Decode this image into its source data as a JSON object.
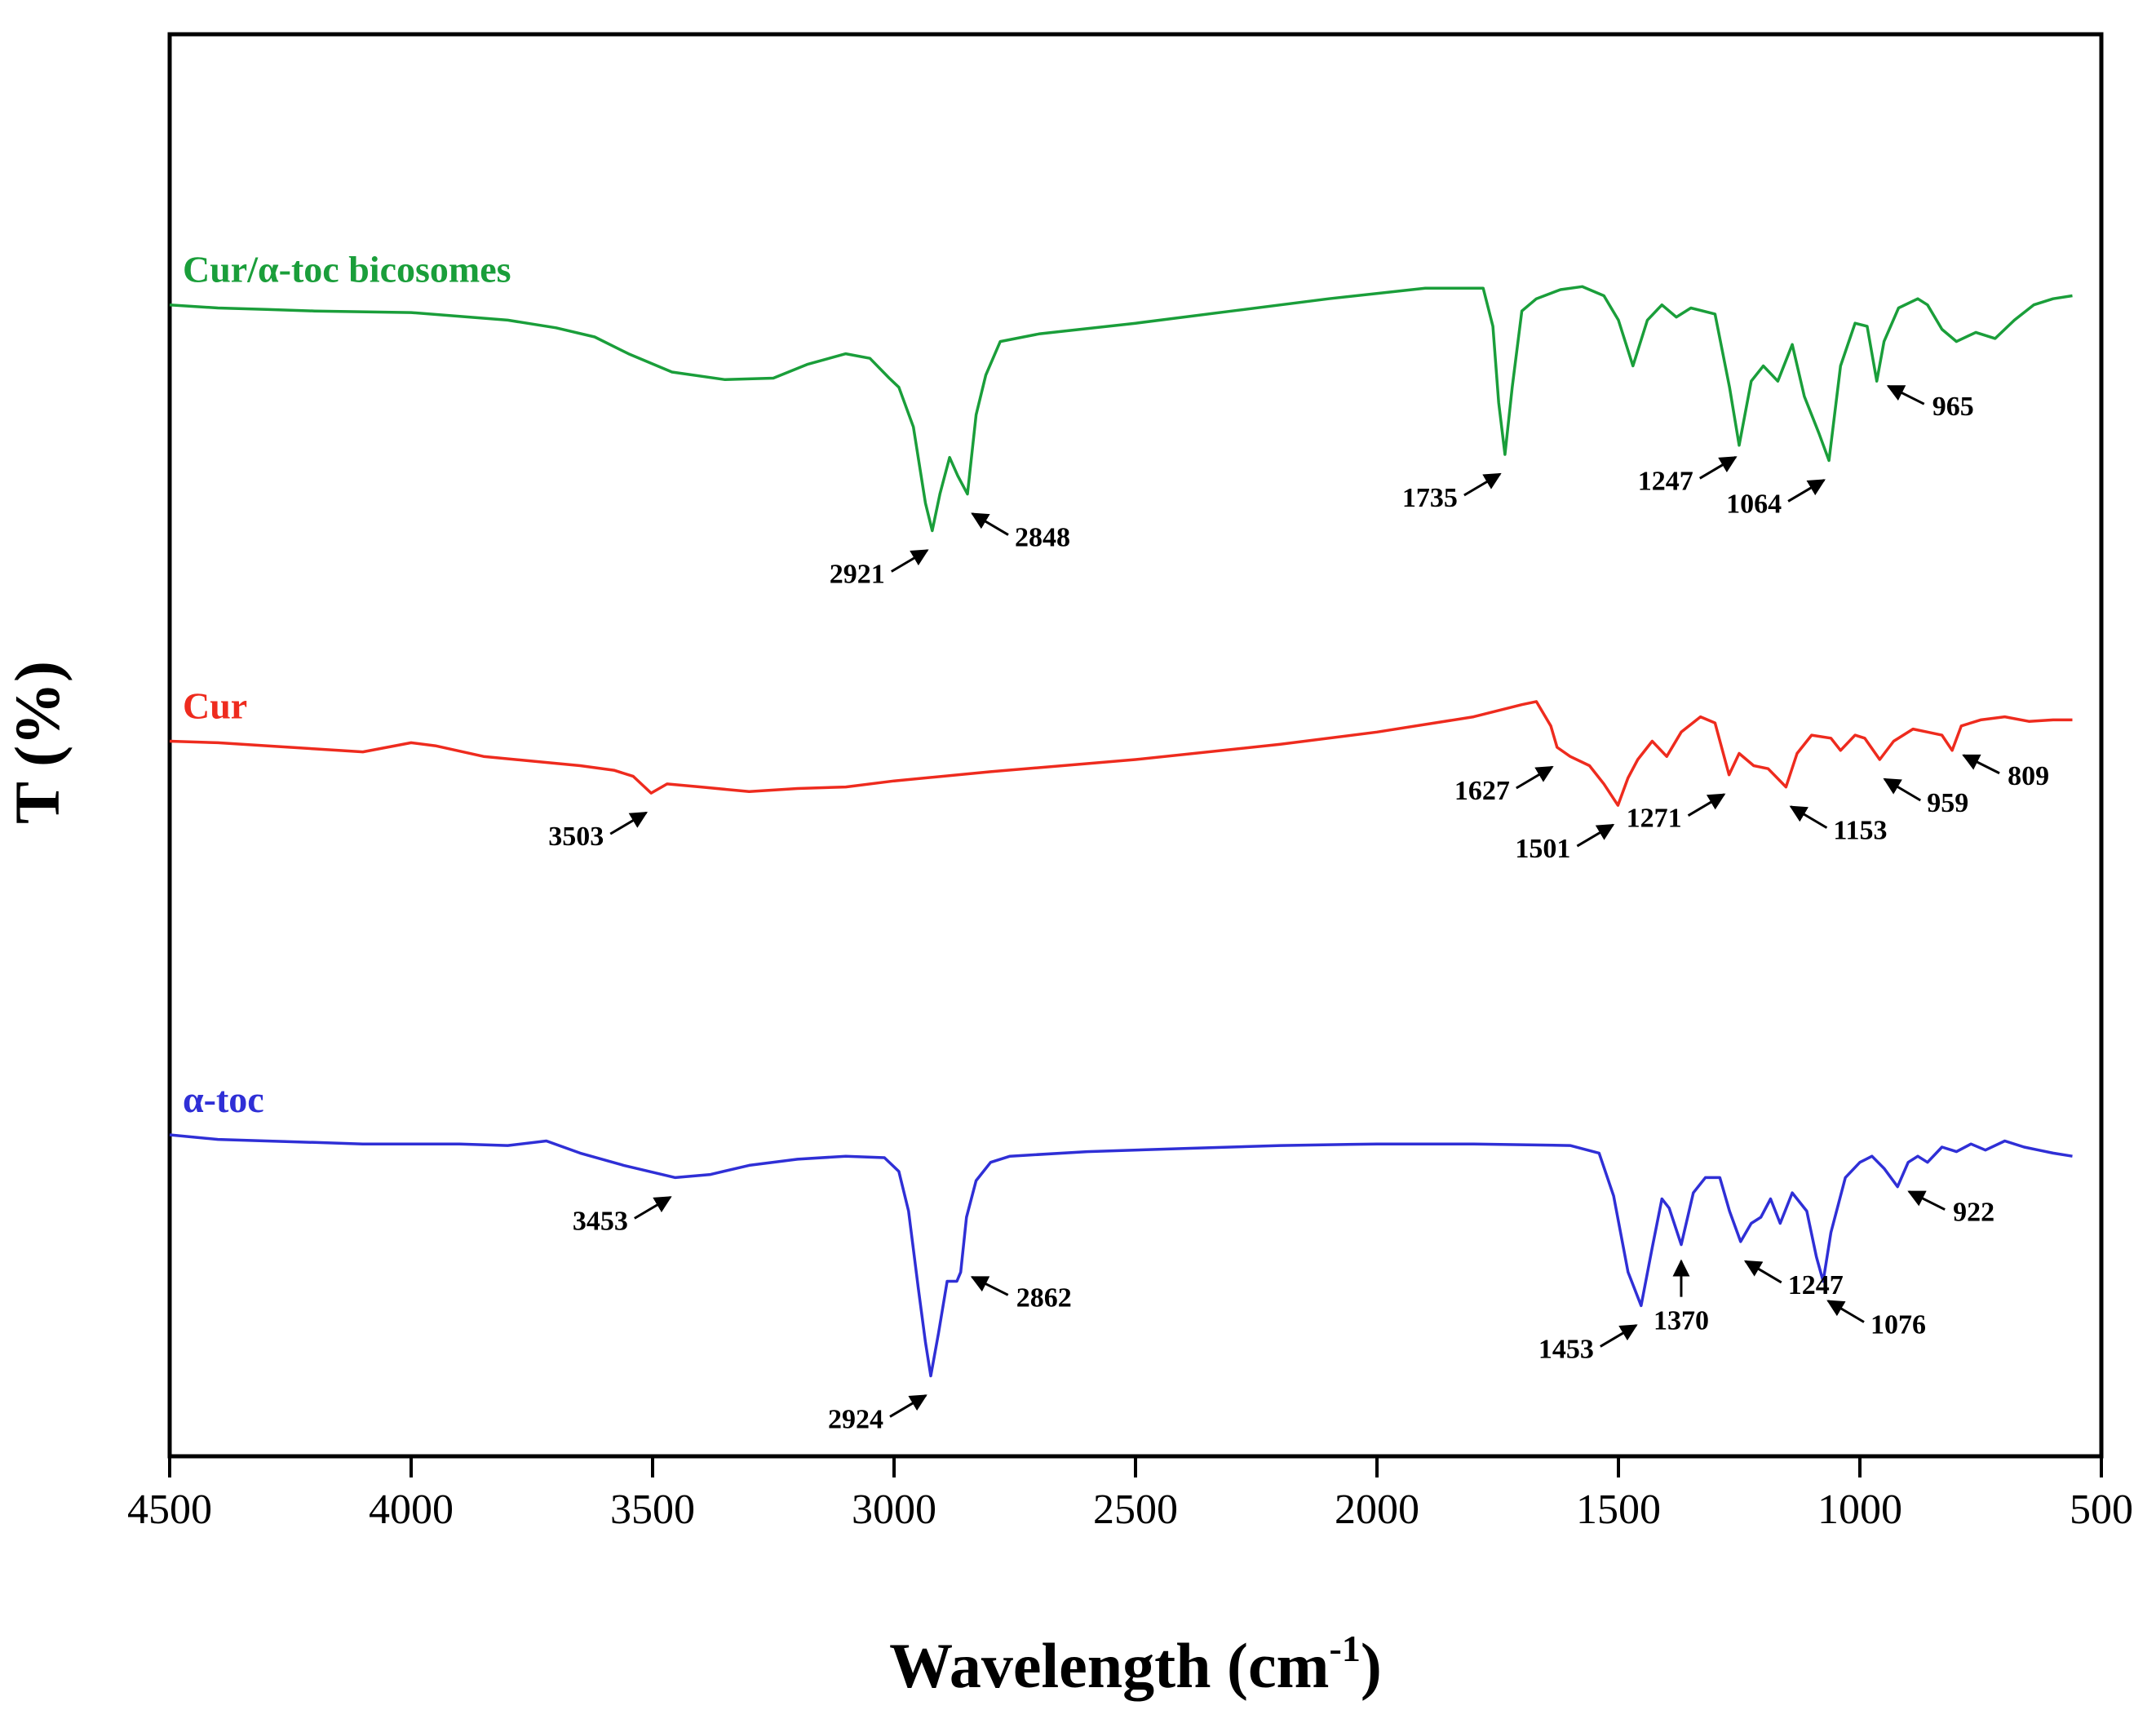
{
  "chart_data": {
    "type": "line",
    "title": "",
    "xlabel": "Wavelength (cm",
    "xlabel_superscript": "-1",
    "xlabel_close": ")",
    "ylabel": "T (%)",
    "xlim": [
      4500,
      500
    ],
    "x_ticks": [
      4500,
      4000,
      3500,
      3000,
      2500,
      2000,
      1500,
      1000,
      500
    ],
    "y_ticks_shown": false,
    "grid": false,
    "legend": "inline labels above each trace",
    "series": [
      {
        "name": "Cur/α-toc bicosomes",
        "color": "#1a9e3a",
        "baseline": 8.0,
        "points": [
          [
            4500,
            7.8
          ],
          [
            4400,
            7.9
          ],
          [
            4300,
            7.95
          ],
          [
            4200,
            8.0
          ],
          [
            4000,
            8.05
          ],
          [
            3800,
            8.3
          ],
          [
            3700,
            8.55
          ],
          [
            3620,
            8.85
          ],
          [
            3550,
            9.4
          ],
          [
            3460,
            10.0
          ],
          [
            3350,
            10.25
          ],
          [
            3250,
            10.2
          ],
          [
            3180,
            9.75
          ],
          [
            3100,
            9.4
          ],
          [
            3050,
            9.55
          ],
          [
            3010,
            10.2
          ],
          [
            2990,
            10.5
          ],
          [
            2960,
            11.8
          ],
          [
            2935,
            14.3
          ],
          [
            2921,
            15.2
          ],
          [
            2905,
            14.0
          ],
          [
            2885,
            12.8
          ],
          [
            2868,
            13.4
          ],
          [
            2848,
            14.0
          ],
          [
            2830,
            11.4
          ],
          [
            2810,
            10.1
          ],
          [
            2780,
            9.0
          ],
          [
            2700,
            8.75
          ],
          [
            2500,
            8.4
          ],
          [
            2300,
            8.0
          ],
          [
            2100,
            7.6
          ],
          [
            1900,
            7.25
          ],
          [
            1780,
            7.25
          ],
          [
            1760,
            8.5
          ],
          [
            1748,
            11.0
          ],
          [
            1735,
            12.7
          ],
          [
            1720,
            10.5
          ],
          [
            1700,
            8.0
          ],
          [
            1670,
            7.6
          ],
          [
            1620,
            7.3
          ],
          [
            1575,
            7.2
          ],
          [
            1530,
            7.5
          ],
          [
            1500,
            8.3
          ],
          [
            1470,
            9.8
          ],
          [
            1440,
            8.3
          ],
          [
            1410,
            7.8
          ],
          [
            1380,
            8.2
          ],
          [
            1350,
            7.9
          ],
          [
            1300,
            8.1
          ],
          [
            1270,
            10.5
          ],
          [
            1250,
            12.4
          ],
          [
            1225,
            10.3
          ],
          [
            1200,
            9.8
          ],
          [
            1170,
            10.3
          ],
          [
            1140,
            9.1
          ],
          [
            1115,
            10.8
          ],
          [
            1085,
            12.0
          ],
          [
            1064,
            12.9
          ],
          [
            1040,
            9.8
          ],
          [
            1010,
            8.4
          ],
          [
            985,
            8.5
          ],
          [
            965,
            10.3
          ],
          [
            950,
            9.0
          ],
          [
            920,
            7.9
          ],
          [
            880,
            7.6
          ],
          [
            860,
            7.8
          ],
          [
            830,
            8.6
          ],
          [
            800,
            9.0
          ],
          [
            760,
            8.7
          ],
          [
            720,
            8.9
          ],
          [
            680,
            8.3
          ],
          [
            640,
            7.8
          ],
          [
            600,
            7.6
          ],
          [
            560,
            7.5
          ]
        ]
      },
      {
        "name": "Cur",
        "color": "#ee2b1e",
        "baseline": 22.0,
        "points": [
          [
            4500,
            22.1
          ],
          [
            4400,
            22.15
          ],
          [
            4300,
            22.25
          ],
          [
            4200,
            22.35
          ],
          [
            4100,
            22.45
          ],
          [
            4000,
            22.15
          ],
          [
            3950,
            22.25
          ],
          [
            3850,
            22.6
          ],
          [
            3750,
            22.75
          ],
          [
            3650,
            22.9
          ],
          [
            3580,
            23.05
          ],
          [
            3540,
            23.25
          ],
          [
            3503,
            23.8
          ],
          [
            3470,
            23.5
          ],
          [
            3400,
            23.6
          ],
          [
            3300,
            23.75
          ],
          [
            3200,
            23.65
          ],
          [
            3100,
            23.6
          ],
          [
            3000,
            23.4
          ],
          [
            2800,
            23.1
          ],
          [
            2500,
            22.7
          ],
          [
            2200,
            22.2
          ],
          [
            2000,
            21.8
          ],
          [
            1800,
            21.3
          ],
          [
            1700,
            20.9
          ],
          [
            1670,
            20.8
          ],
          [
            1640,
            21.6
          ],
          [
            1627,
            22.3
          ],
          [
            1600,
            22.6
          ],
          [
            1560,
            22.9
          ],
          [
            1530,
            23.5
          ],
          [
            1501,
            24.2
          ],
          [
            1480,
            23.3
          ],
          [
            1460,
            22.7
          ],
          [
            1430,
            22.1
          ],
          [
            1400,
            22.6
          ],
          [
            1370,
            21.8
          ],
          [
            1330,
            21.3
          ],
          [
            1300,
            21.5
          ],
          [
            1271,
            23.2
          ],
          [
            1250,
            22.5
          ],
          [
            1220,
            22.9
          ],
          [
            1190,
            23.0
          ],
          [
            1153,
            23.6
          ],
          [
            1130,
            22.5
          ],
          [
            1100,
            21.9
          ],
          [
            1060,
            22.0
          ],
          [
            1040,
            22.4
          ],
          [
            1010,
            21.9
          ],
          [
            990,
            22.0
          ],
          [
            959,
            22.7
          ],
          [
            930,
            22.1
          ],
          [
            890,
            21.7
          ],
          [
            860,
            21.8
          ],
          [
            830,
            21.9
          ],
          [
            809,
            22.4
          ],
          [
            790,
            21.6
          ],
          [
            750,
            21.4
          ],
          [
            700,
            21.3
          ],
          [
            650,
            21.45
          ],
          [
            600,
            21.4
          ],
          [
            560,
            21.4
          ]
        ]
      },
      {
        "name": "α-toc",
        "color": "#2f2fd6",
        "baseline": 35.0,
        "points": [
          [
            4500,
            35.0
          ],
          [
            4400,
            35.15
          ],
          [
            4300,
            35.2
          ],
          [
            4200,
            35.25
          ],
          [
            4100,
            35.3
          ],
          [
            4000,
            35.3
          ],
          [
            3900,
            35.3
          ],
          [
            3800,
            35.35
          ],
          [
            3720,
            35.2
          ],
          [
            3650,
            35.6
          ],
          [
            3560,
            36.0
          ],
          [
            3453,
            36.4
          ],
          [
            3380,
            36.3
          ],
          [
            3300,
            36.0
          ],
          [
            3200,
            35.8
          ],
          [
            3100,
            35.7
          ],
          [
            3020,
            35.75
          ],
          [
            2990,
            36.2
          ],
          [
            2970,
            37.5
          ],
          [
            2950,
            40.0
          ],
          [
            2935,
            41.8
          ],
          [
            2924,
            42.9
          ],
          [
            2908,
            41.5
          ],
          [
            2890,
            39.8
          ],
          [
            2870,
            39.8
          ],
          [
            2862,
            39.5
          ],
          [
            2850,
            37.7
          ],
          [
            2830,
            36.5
          ],
          [
            2800,
            35.9
          ],
          [
            2760,
            35.7
          ],
          [
            2600,
            35.55
          ],
          [
            2400,
            35.45
          ],
          [
            2200,
            35.35
          ],
          [
            2000,
            35.3
          ],
          [
            1800,
            35.3
          ],
          [
            1600,
            35.35
          ],
          [
            1540,
            35.6
          ],
          [
            1510,
            37.0
          ],
          [
            1480,
            39.5
          ],
          [
            1453,
            40.6
          ],
          [
            1430,
            38.7
          ],
          [
            1410,
            37.1
          ],
          [
            1395,
            37.4
          ],
          [
            1370,
            38.6
          ],
          [
            1345,
            36.9
          ],
          [
            1320,
            36.4
          ],
          [
            1290,
            36.4
          ],
          [
            1270,
            37.5
          ],
          [
            1247,
            38.5
          ],
          [
            1225,
            37.9
          ],
          [
            1205,
            37.7
          ],
          [
            1185,
            37.1
          ],
          [
            1165,
            37.9
          ],
          [
            1140,
            36.9
          ],
          [
            1110,
            37.5
          ],
          [
            1090,
            39.0
          ],
          [
            1076,
            39.8
          ],
          [
            1060,
            38.2
          ],
          [
            1030,
            36.4
          ],
          [
            1000,
            35.9
          ],
          [
            975,
            35.7
          ],
          [
            950,
            36.1
          ],
          [
            922,
            36.7
          ],
          [
            900,
            35.9
          ],
          [
            880,
            35.7
          ],
          [
            860,
            35.9
          ],
          [
            830,
            35.4
          ],
          [
            800,
            35.55
          ],
          [
            770,
            35.3
          ],
          [
            740,
            35.5
          ],
          [
            700,
            35.2
          ],
          [
            660,
            35.4
          ],
          [
            630,
            35.5
          ],
          [
            600,
            35.6
          ],
          [
            560,
            35.7
          ]
        ]
      }
    ],
    "annotations": [
      {
        "text": "2921",
        "series": "Cur/α-toc bicosomes",
        "x": 2921
      },
      {
        "text": "2848",
        "series": "Cur/α-toc bicosomes",
        "x": 2848
      },
      {
        "text": "1735",
        "series": "Cur/α-toc bicosomes",
        "x": 1735
      },
      {
        "text": "1247",
        "series": "Cur/α-toc bicosomes",
        "x": 1247
      },
      {
        "text": "1064",
        "series": "Cur/α-toc bicosomes",
        "x": 1064
      },
      {
        "text": "965",
        "series": "Cur/α-toc bicosomes",
        "x": 965
      },
      {
        "text": "3503",
        "series": "Cur",
        "x": 3503
      },
      {
        "text": "1627",
        "series": "Cur",
        "x": 1627
      },
      {
        "text": "1501",
        "series": "Cur",
        "x": 1501
      },
      {
        "text": "1271",
        "series": "Cur",
        "x": 1271
      },
      {
        "text": "1153",
        "series": "Cur",
        "x": 1153
      },
      {
        "text": "959",
        "series": "Cur",
        "x": 959
      },
      {
        "text": "809",
        "series": "Cur",
        "x": 809
      },
      {
        "text": "3453",
        "series": "α-toc",
        "x": 3453
      },
      {
        "text": "2924",
        "series": "α-toc",
        "x": 2924
      },
      {
        "text": "2862",
        "series": "α-toc",
        "x": 2862
      },
      {
        "text": "1453",
        "series": "α-toc",
        "x": 1453
      },
      {
        "text": "1370",
        "series": "α-toc",
        "x": 1370
      },
      {
        "text": "1247",
        "series": "α-toc",
        "x": 1247
      },
      {
        "text": "1076",
        "series": "α-toc",
        "x": 1076
      },
      {
        "text": "922",
        "series": "α-toc",
        "x": 922
      }
    ]
  }
}
